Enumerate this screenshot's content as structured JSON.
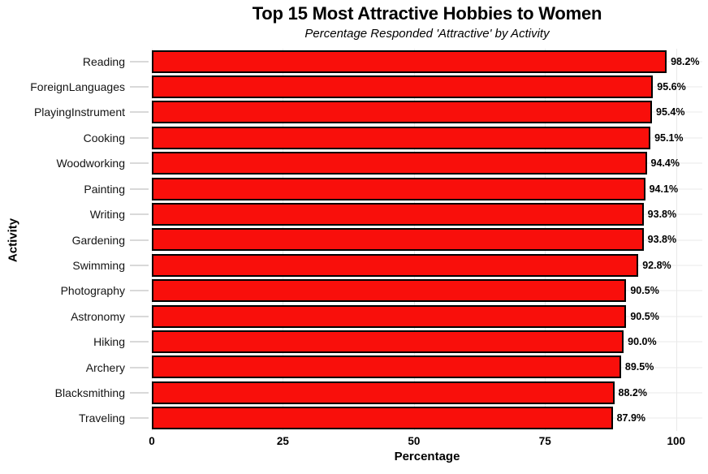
{
  "chart_data": {
    "type": "bar",
    "orientation": "horizontal",
    "title": "Top 15 Most Attractive Hobbies to Women",
    "subtitle": "Percentage Responded 'Attractive' by Activity",
    "xlabel": "Percentage",
    "ylabel": "Activity",
    "categories": [
      "Reading",
      "ForeignLanguages",
      "PlayingInstrument",
      "Cooking",
      "Woodworking",
      "Painting",
      "Writing",
      "Gardening",
      "Swimming",
      "Photography",
      "Astronomy",
      "Hiking",
      "Archery",
      "Blacksmithing",
      "Traveling"
    ],
    "values": [
      98.2,
      95.6,
      95.4,
      95.1,
      94.4,
      94.1,
      93.8,
      93.8,
      92.8,
      90.5,
      90.5,
      90.0,
      89.5,
      88.2,
      87.9
    ],
    "value_labels": [
      "98.2%",
      "95.6%",
      "95.4%",
      "95.1%",
      "94.4%",
      "94.1%",
      "93.8%",
      "93.8%",
      "92.8%",
      "90.5%",
      "90.5%",
      "90.0%",
      "89.5%",
      "88.2%",
      "87.9%"
    ],
    "x_ticks": [
      0,
      25,
      50,
      75,
      100
    ],
    "x_tick_labels": [
      "0",
      "25",
      "50",
      "75",
      "100"
    ],
    "xlim": [
      0,
      105
    ],
    "grid": true,
    "legend": "none",
    "colors": {
      "bar_fill": "#f90f0b",
      "bar_border": "#000000",
      "gridline": "#e9e9e9",
      "axis_tick": "#d9d9d9",
      "text": "#000000",
      "background": "#ffffff"
    }
  }
}
